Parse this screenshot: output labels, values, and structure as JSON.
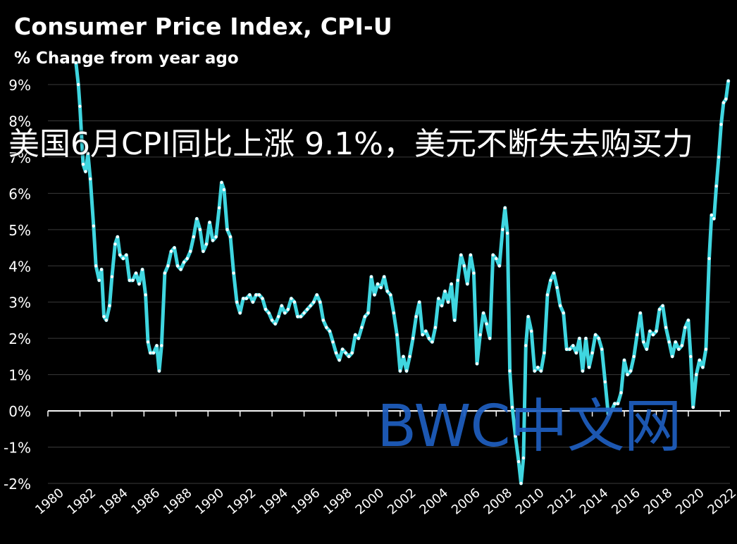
{
  "chart_data": {
    "type": "line",
    "title": "Consumer  Price Index, CPI-U",
    "subtitle": "% Change from year ago",
    "ylim": [
      -2,
      9
    ],
    "xlim": [
      1980,
      2022.6
    ],
    "y_ticks": [
      "-2%",
      "-1%",
      "0%",
      "1%",
      "2%",
      "3%",
      "4%",
      "5%",
      "6%",
      "7%",
      "8%",
      "9%"
    ],
    "y_tick_values": [
      -2,
      -1,
      0,
      1,
      2,
      3,
      4,
      5,
      6,
      7,
      8,
      9
    ],
    "x_ticks": [
      "1980",
      "1982",
      "1984",
      "1986",
      "1988",
      "1990",
      "1992",
      "1994",
      "1996",
      "1998",
      "2000",
      "2002",
      "2004",
      "2006",
      "2008",
      "2010",
      "2012",
      "2014",
      "2016",
      "2018",
      "2020",
      "2022"
    ],
    "x_tick_values": [
      1980,
      1982,
      1984,
      1986,
      1988,
      1990,
      1992,
      1994,
      1996,
      1998,
      2000,
      2002,
      2004,
      2006,
      2008,
      2010,
      2012,
      2014,
      2016,
      2018,
      2020,
      2022
    ],
    "grid": true,
    "series_color": "#3fd6e0",
    "marker_color": "#ffffff",
    "series": [
      {
        "values": [
          [
            1981.75,
            9.6
          ],
          [
            1981.9,
            9.0
          ],
          [
            1982.0,
            8.4
          ],
          [
            1982.2,
            6.8
          ],
          [
            1982.35,
            6.6
          ],
          [
            1982.5,
            7.1
          ],
          [
            1982.65,
            6.4
          ],
          [
            1982.85,
            5.1
          ],
          [
            1983.0,
            4.0
          ],
          [
            1983.2,
            3.6
          ],
          [
            1983.35,
            3.9
          ],
          [
            1983.5,
            2.6
          ],
          [
            1983.65,
            2.5
          ],
          [
            1983.85,
            2.9
          ],
          [
            1984.0,
            3.7
          ],
          [
            1984.2,
            4.6
          ],
          [
            1984.35,
            4.8
          ],
          [
            1984.5,
            4.3
          ],
          [
            1984.7,
            4.2
          ],
          [
            1984.9,
            4.3
          ],
          [
            1985.1,
            3.6
          ],
          [
            1985.3,
            3.6
          ],
          [
            1985.5,
            3.8
          ],
          [
            1985.7,
            3.5
          ],
          [
            1985.9,
            3.9
          ],
          [
            1986.1,
            3.2
          ],
          [
            1986.25,
            1.9
          ],
          [
            1986.4,
            1.6
          ],
          [
            1986.6,
            1.6
          ],
          [
            1986.8,
            1.8
          ],
          [
            1986.95,
            1.1
          ],
          [
            1987.1,
            1.8
          ],
          [
            1987.3,
            3.8
          ],
          [
            1987.5,
            4.0
          ],
          [
            1987.7,
            4.4
          ],
          [
            1987.9,
            4.5
          ],
          [
            1988.1,
            4.0
          ],
          [
            1988.3,
            3.9
          ],
          [
            1988.5,
            4.1
          ],
          [
            1988.7,
            4.2
          ],
          [
            1988.9,
            4.4
          ],
          [
            1989.1,
            4.8
          ],
          [
            1989.3,
            5.3
          ],
          [
            1989.5,
            5.0
          ],
          [
            1989.7,
            4.4
          ],
          [
            1989.9,
            4.6
          ],
          [
            1990.1,
            5.2
          ],
          [
            1990.3,
            4.7
          ],
          [
            1990.5,
            4.8
          ],
          [
            1990.7,
            5.6
          ],
          [
            1990.85,
            6.3
          ],
          [
            1991.0,
            6.1
          ],
          [
            1991.2,
            5.0
          ],
          [
            1991.4,
            4.8
          ],
          [
            1991.6,
            3.8
          ],
          [
            1991.8,
            3.0
          ],
          [
            1992.0,
            2.7
          ],
          [
            1992.2,
            3.1
          ],
          [
            1992.4,
            3.1
          ],
          [
            1992.6,
            3.2
          ],
          [
            1992.8,
            3.0
          ],
          [
            1993.0,
            3.2
          ],
          [
            1993.2,
            3.2
          ],
          [
            1993.4,
            3.1
          ],
          [
            1993.6,
            2.8
          ],
          [
            1993.8,
            2.7
          ],
          [
            1994.0,
            2.5
          ],
          [
            1994.2,
            2.4
          ],
          [
            1994.4,
            2.6
          ],
          [
            1994.6,
            2.9
          ],
          [
            1994.8,
            2.7
          ],
          [
            1995.0,
            2.8
          ],
          [
            1995.2,
            3.1
          ],
          [
            1995.4,
            3.0
          ],
          [
            1995.6,
            2.6
          ],
          [
            1995.8,
            2.6
          ],
          [
            1996.0,
            2.7
          ],
          [
            1996.2,
            2.8
          ],
          [
            1996.4,
            2.9
          ],
          [
            1996.6,
            3.0
          ],
          [
            1996.8,
            3.2
          ],
          [
            1997.0,
            3.0
          ],
          [
            1997.2,
            2.5
          ],
          [
            1997.4,
            2.3
          ],
          [
            1997.6,
            2.2
          ],
          [
            1997.8,
            1.9
          ],
          [
            1998.0,
            1.6
          ],
          [
            1998.2,
            1.4
          ],
          [
            1998.4,
            1.7
          ],
          [
            1998.6,
            1.6
          ],
          [
            1998.8,
            1.5
          ],
          [
            1999.0,
            1.6
          ],
          [
            1999.2,
            2.1
          ],
          [
            1999.4,
            2.0
          ],
          [
            1999.6,
            2.3
          ],
          [
            1999.8,
            2.6
          ],
          [
            2000.0,
            2.7
          ],
          [
            2000.2,
            3.7
          ],
          [
            2000.4,
            3.2
          ],
          [
            2000.6,
            3.5
          ],
          [
            2000.8,
            3.4
          ],
          [
            2001.0,
            3.7
          ],
          [
            2001.2,
            3.3
          ],
          [
            2001.4,
            3.2
          ],
          [
            2001.6,
            2.7
          ],
          [
            2001.8,
            2.1
          ],
          [
            2002.0,
            1.1
          ],
          [
            2002.2,
            1.5
          ],
          [
            2002.4,
            1.1
          ],
          [
            2002.6,
            1.5
          ],
          [
            2002.8,
            2.0
          ],
          [
            2003.0,
            2.6
          ],
          [
            2003.2,
            3.0
          ],
          [
            2003.4,
            2.1
          ],
          [
            2003.6,
            2.2
          ],
          [
            2003.8,
            2.0
          ],
          [
            2004.0,
            1.9
          ],
          [
            2004.2,
            2.3
          ],
          [
            2004.4,
            3.1
          ],
          [
            2004.6,
            2.9
          ],
          [
            2004.8,
            3.3
          ],
          [
            2005.0,
            3.0
          ],
          [
            2005.2,
            3.5
          ],
          [
            2005.4,
            2.5
          ],
          [
            2005.6,
            3.6
          ],
          [
            2005.8,
            4.3
          ],
          [
            2006.0,
            4.0
          ],
          [
            2006.2,
            3.5
          ],
          [
            2006.4,
            4.3
          ],
          [
            2006.6,
            3.8
          ],
          [
            2006.8,
            1.3
          ],
          [
            2007.0,
            2.1
          ],
          [
            2007.2,
            2.7
          ],
          [
            2007.4,
            2.4
          ],
          [
            2007.6,
            2.0
          ],
          [
            2007.8,
            4.3
          ],
          [
            2008.0,
            4.2
          ],
          [
            2008.2,
            4.0
          ],
          [
            2008.4,
            5.0
          ],
          [
            2008.55,
            5.6
          ],
          [
            2008.7,
            4.9
          ],
          [
            2008.85,
            1.1
          ],
          [
            2009.0,
            0.1
          ],
          [
            2009.2,
            -0.7
          ],
          [
            2009.4,
            -1.4
          ],
          [
            2009.55,
            -2.0
          ],
          [
            2009.7,
            -1.3
          ],
          [
            2009.85,
            1.8
          ],
          [
            2010.0,
            2.6
          ],
          [
            2010.2,
            2.2
          ],
          [
            2010.4,
            1.1
          ],
          [
            2010.6,
            1.2
          ],
          [
            2010.8,
            1.1
          ],
          [
            2011.0,
            1.6
          ],
          [
            2011.2,
            3.2
          ],
          [
            2011.4,
            3.6
          ],
          [
            2011.6,
            3.8
          ],
          [
            2011.8,
            3.4
          ],
          [
            2012.0,
            2.9
          ],
          [
            2012.2,
            2.7
          ],
          [
            2012.4,
            1.7
          ],
          [
            2012.6,
            1.7
          ],
          [
            2012.8,
            1.8
          ],
          [
            2013.0,
            1.6
          ],
          [
            2013.2,
            2.0
          ],
          [
            2013.4,
            1.1
          ],
          [
            2013.6,
            2.0
          ],
          [
            2013.8,
            1.2
          ],
          [
            2014.0,
            1.6
          ],
          [
            2014.2,
            2.1
          ],
          [
            2014.4,
            2.0
          ],
          [
            2014.6,
            1.7
          ],
          [
            2014.8,
            0.8
          ],
          [
            2015.0,
            -0.1
          ],
          [
            2015.2,
            0.0
          ],
          [
            2015.4,
            0.2
          ],
          [
            2015.6,
            0.2
          ],
          [
            2015.8,
            0.5
          ],
          [
            2016.0,
            1.4
          ],
          [
            2016.2,
            1.0
          ],
          [
            2016.4,
            1.1
          ],
          [
            2016.6,
            1.5
          ],
          [
            2016.8,
            2.1
          ],
          [
            2017.0,
            2.7
          ],
          [
            2017.2,
            1.9
          ],
          [
            2017.4,
            1.7
          ],
          [
            2017.6,
            2.2
          ],
          [
            2017.8,
            2.1
          ],
          [
            2018.0,
            2.2
          ],
          [
            2018.2,
            2.8
          ],
          [
            2018.4,
            2.9
          ],
          [
            2018.6,
            2.3
          ],
          [
            2018.8,
            1.9
          ],
          [
            2019.0,
            1.5
          ],
          [
            2019.2,
            1.9
          ],
          [
            2019.4,
            1.7
          ],
          [
            2019.6,
            1.8
          ],
          [
            2019.8,
            2.3
          ],
          [
            2020.0,
            2.5
          ],
          [
            2020.15,
            1.5
          ],
          [
            2020.3,
            0.1
          ],
          [
            2020.5,
            1.0
          ],
          [
            2020.7,
            1.4
          ],
          [
            2020.9,
            1.2
          ],
          [
            2021.1,
            1.7
          ],
          [
            2021.3,
            4.2
          ],
          [
            2021.45,
            5.4
          ],
          [
            2021.6,
            5.3
          ],
          [
            2021.75,
            6.2
          ],
          [
            2021.9,
            7.0
          ],
          [
            2022.05,
            7.9
          ],
          [
            2022.2,
            8.5
          ],
          [
            2022.35,
            8.6
          ],
          [
            2022.5,
            9.1
          ]
        ]
      }
    ]
  },
  "overlay_caption": "美国6月CPI同比上涨 9.1%，美元不断失去购买力",
  "watermark": "BWC中文网"
}
